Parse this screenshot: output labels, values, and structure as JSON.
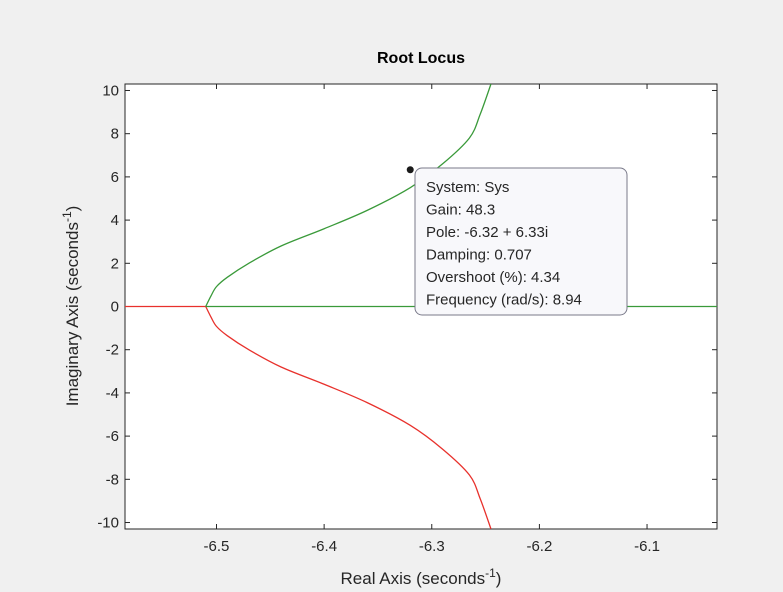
{
  "chart_data": {
    "type": "line",
    "title": "Root Locus",
    "xlabel": "Real Axis (seconds",
    "ylabel": "Imaginary Axis (seconds",
    "axis_unit_exponent": "-1",
    "xlim": [
      -6.585,
      -6.035
    ],
    "ylim": [
      -10.3,
      10.3
    ],
    "xticks": [
      -6.5,
      -6.4,
      -6.3,
      -6.2,
      -6.1
    ],
    "xtick_labels": [
      "-6.5",
      "-6.4",
      "-6.3",
      "-6.2",
      "-6.1"
    ],
    "yticks": [
      10,
      8,
      6,
      4,
      2,
      0,
      -2,
      -4,
      -6,
      -8,
      -10
    ],
    "ytick_labels": [
      "10",
      "8",
      "6",
      "4",
      "2",
      "0",
      "-2",
      "-4",
      "-6",
      "-8",
      "-10"
    ],
    "grid": false,
    "series": [
      {
        "color": "#e8312c",
        "style": "solid",
        "points": [
          [
            -6.585,
            0
          ],
          [
            -6.51,
            0
          ]
        ]
      },
      {
        "color": "#e8312c",
        "style": "solid",
        "points": [
          [
            -6.51,
            0
          ],
          [
            -6.505,
            -0.5
          ],
          [
            -6.5,
            -0.92
          ],
          [
            -6.49,
            -1.35
          ],
          [
            -6.47,
            -2.0
          ],
          [
            -6.44,
            -2.8
          ],
          [
            -6.4,
            -3.6
          ],
          [
            -6.36,
            -4.45
          ],
          [
            -6.32,
            -5.5
          ],
          [
            -6.29,
            -6.6
          ],
          [
            -6.265,
            -7.8
          ],
          [
            -6.255,
            -8.9
          ],
          [
            -6.245,
            -10.3
          ]
        ]
      },
      {
        "color": "#3a9a3a",
        "style": "solid",
        "points": [
          [
            -6.51,
            0
          ],
          [
            -6.505,
            0.5
          ],
          [
            -6.5,
            0.92
          ],
          [
            -6.49,
            1.35
          ],
          [
            -6.47,
            2.0
          ],
          [
            -6.44,
            2.8
          ],
          [
            -6.4,
            3.6
          ],
          [
            -6.36,
            4.45
          ],
          [
            -6.32,
            5.5
          ],
          [
            -6.29,
            6.6
          ],
          [
            -6.265,
            7.8
          ],
          [
            -6.255,
            8.9
          ],
          [
            -6.245,
            10.3
          ]
        ]
      },
      {
        "color": "#3a9a3a",
        "style": "solid",
        "points": [
          [
            -6.51,
            0
          ],
          [
            -6.035,
            0
          ]
        ]
      }
    ],
    "marker": {
      "x": -6.32,
      "y": 6.33,
      "color": "#1a1a1a"
    },
    "datatip": {
      "lines": [
        "System: Sys",
        "Gain: 48.3",
        "Pole: -6.32 + 6.33i",
        "Damping: 0.707",
        "Overshoot (%): 4.34",
        "Frequency (rad/s): 8.94"
      ]
    }
  }
}
